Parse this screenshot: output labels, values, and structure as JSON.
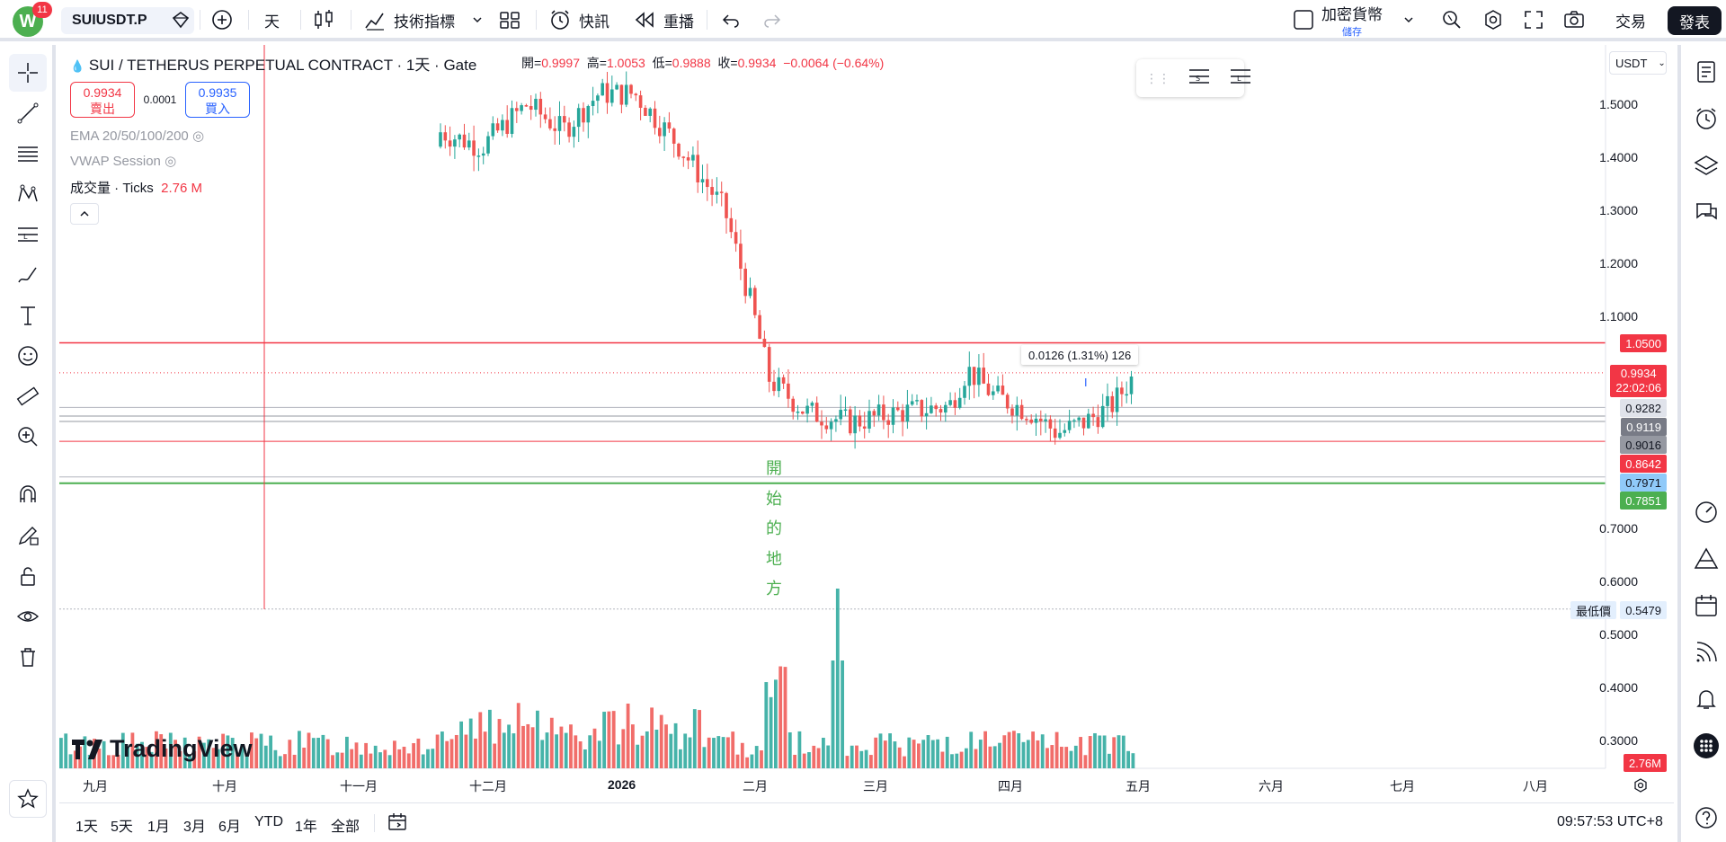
{
  "topbar": {
    "avatar_letter": "W",
    "notification_count": "11",
    "symbol": "SUIUSDT.P",
    "interval": "天",
    "indicators": "技術指標",
    "alerts": "快訊",
    "replay": "重播",
    "layout_name": "加密貨幣",
    "save_label": "儲存",
    "trade": "交易",
    "publish": "發表"
  },
  "legend": {
    "title": "SUI / TETHERUS PERPETUAL CONTRACT · 1天 · Gate",
    "open_label": "開=",
    "open": "0.9997",
    "high_label": "高=",
    "high": "1.0053",
    "low_label": "低=",
    "low": "0.9888",
    "close_label": "收=",
    "close": "0.9934",
    "change": "−0.0064 (−0.64%)",
    "sell_price": "0.9934",
    "sell_label": "賣出",
    "spread": "0.0001",
    "buy_price": "0.9935",
    "buy_label": "買入",
    "ema": "EMA 20/50/100/200",
    "vwap": "VWAP Session",
    "volume_label": "成交量 · Ticks",
    "volume_value": "2.76 M"
  },
  "price_axis": {
    "currency": "USDT",
    "ticks": [
      "1.5000",
      "1.4000",
      "1.3000",
      "1.2000",
      "1.1000",
      "0.7000",
      "0.6000",
      "0.5000",
      "0.4000",
      "0.3000"
    ],
    "labels": {
      "line_red": "1.0500",
      "last": "0.9934",
      "countdown": "22:02:06",
      "l1": "0.9282",
      "l2": "0.9119",
      "l3": "0.9016",
      "l4": "0.8642",
      "l5": "0.7971",
      "l6": "0.7851",
      "lowest_label": "最低價",
      "lowest": "0.5479",
      "volume": "2.76M"
    }
  },
  "time_axis": [
    "九月",
    "十月",
    "十一月",
    "十二月",
    "2026",
    "二月",
    "三月",
    "四月",
    "五月",
    "六月",
    "七月",
    "八月"
  ],
  "annotation": {
    "vertical_text": [
      "開",
      "始",
      "的",
      "地",
      "方"
    ]
  },
  "measure": "0.0126 (1.31%) 126",
  "watermark": "TradingView",
  "bottombar": {
    "ranges": [
      "1天",
      "5天",
      "1月",
      "3月",
      "6月",
      "YTD",
      "1年",
      "全部"
    ],
    "clock": "09:57:53 UTC+8"
  },
  "colors": {
    "up": "#26a69a",
    "down": "#ef5350",
    "red_line": "#f23645",
    "green_line": "#4caf50"
  }
}
